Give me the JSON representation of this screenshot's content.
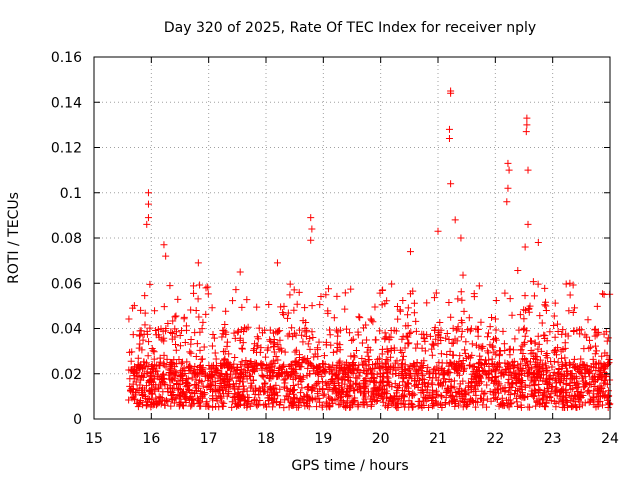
{
  "chart_data": {
    "type": "scatter",
    "title": "Day 320 of 2025, Rate Of TEC Index for receiver nply",
    "xlabel": "GPS time / hours",
    "ylabel": "ROTI / TECUs",
    "xlim": [
      15,
      24
    ],
    "ylim": [
      0,
      0.16
    ],
    "x_ticks": [
      15,
      16,
      17,
      18,
      19,
      20,
      21,
      22,
      23,
      24
    ],
    "y_ticks": [
      "0",
      "0.02",
      "0.04",
      "0.06",
      "0.08",
      "0.1",
      "0.12",
      "0.14",
      "0.16"
    ],
    "grid": true,
    "marker": "+",
    "color": "#ff0000",
    "data_start_hour": 15.6,
    "data_end_hour": 24.0,
    "baseline_band": [
      0.005,
      0.025
    ],
    "notable_points": [
      {
        "x": 15.95,
        "y": 0.1
      },
      {
        "x": 15.95,
        "y": 0.095
      },
      {
        "x": 15.95,
        "y": 0.089
      },
      {
        "x": 15.92,
        "y": 0.086
      },
      {
        "x": 16.22,
        "y": 0.077
      },
      {
        "x": 16.25,
        "y": 0.072
      },
      {
        "x": 16.82,
        "y": 0.069
      },
      {
        "x": 17.55,
        "y": 0.065
      },
      {
        "x": 18.2,
        "y": 0.069
      },
      {
        "x": 18.78,
        "y": 0.089
      },
      {
        "x": 18.8,
        "y": 0.084
      },
      {
        "x": 18.78,
        "y": 0.079
      },
      {
        "x": 20.52,
        "y": 0.074
      },
      {
        "x": 21.0,
        "y": 0.083
      },
      {
        "x": 21.22,
        "y": 0.145
      },
      {
        "x": 21.22,
        "y": 0.144
      },
      {
        "x": 21.2,
        "y": 0.128
      },
      {
        "x": 21.2,
        "y": 0.124
      },
      {
        "x": 21.22,
        "y": 0.104
      },
      {
        "x": 21.3,
        "y": 0.088
      },
      {
        "x": 21.4,
        "y": 0.08
      },
      {
        "x": 22.22,
        "y": 0.113
      },
      {
        "x": 22.24,
        "y": 0.11
      },
      {
        "x": 22.22,
        "y": 0.102
      },
      {
        "x": 22.2,
        "y": 0.096
      },
      {
        "x": 22.55,
        "y": 0.133
      },
      {
        "x": 22.55,
        "y": 0.13
      },
      {
        "x": 22.54,
        "y": 0.127
      },
      {
        "x": 22.57,
        "y": 0.11
      },
      {
        "x": 22.57,
        "y": 0.086
      },
      {
        "x": 22.52,
        "y": 0.076
      },
      {
        "x": 22.75,
        "y": 0.078
      },
      {
        "x": 23.3,
        "y": 0.06
      }
    ]
  }
}
